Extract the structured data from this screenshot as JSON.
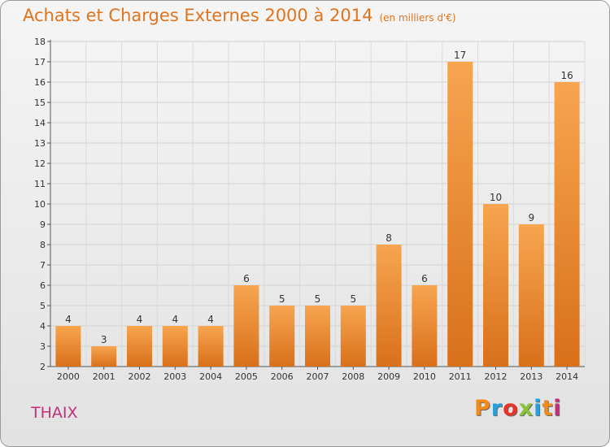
{
  "chart_data": {
    "type": "bar",
    "title": "Achats et Charges Externes 2000 à 2014",
    "subtitle": "(en milliers d'€)",
    "categories": [
      "2000",
      "2001",
      "2002",
      "2003",
      "2004",
      "2005",
      "2006",
      "2007",
      "2008",
      "2009",
      "2010",
      "2011",
      "2012",
      "2013",
      "2014"
    ],
    "values": [
      4,
      3,
      4,
      4,
      4,
      6,
      5,
      5,
      5,
      8,
      6,
      17,
      10,
      9,
      16
    ],
    "ylim": [
      2,
      18
    ],
    "yticks": [
      2,
      3,
      4,
      5,
      6,
      7,
      8,
      9,
      10,
      11,
      12,
      13,
      14,
      15,
      16,
      17,
      18
    ],
    "grid": true,
    "bar_color_light": "#f7a550",
    "bar_color_dark": "#d9701a"
  },
  "footer": {
    "commune": "THAIX",
    "logo_text": "Proxiti",
    "logo_colors": [
      "#f08a18",
      "#2aa0d8",
      "#e8322a",
      "#8ac23a",
      "#2aa0d8",
      "#f08a18",
      "#c2307a"
    ]
  }
}
